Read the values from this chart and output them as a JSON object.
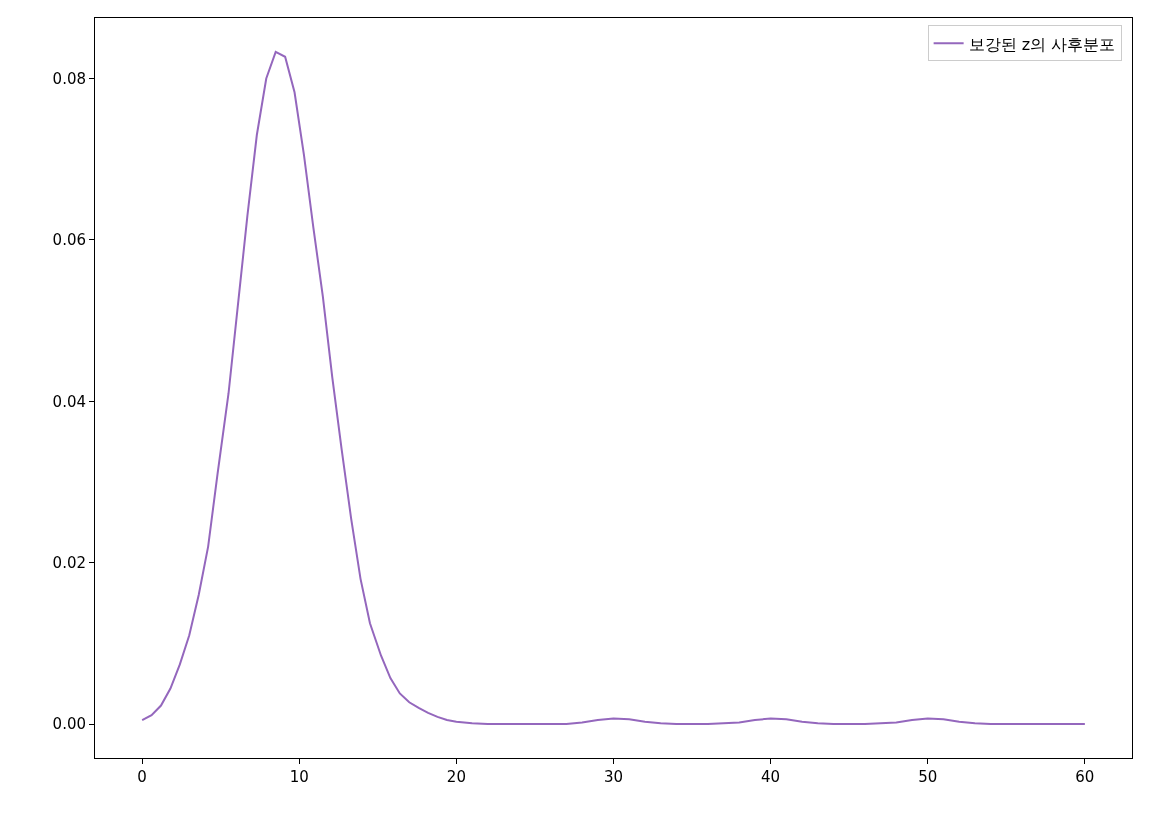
{
  "chart_data": {
    "type": "line",
    "x": [
      0,
      0.6,
      1.2,
      1.8,
      2.4,
      3.0,
      3.6,
      4.2,
      4.8,
      5.5,
      6.1,
      6.7,
      7.3,
      7.9,
      8.5,
      9.1,
      9.7,
      10.3,
      10.9,
      11.5,
      12.1,
      12.7,
      13.3,
      13.9,
      14.5,
      15.2,
      15.8,
      16.4,
      17.0,
      17.6,
      18.2,
      18.8,
      19.4,
      20,
      21,
      22,
      24,
      26,
      27,
      28,
      29,
      30,
      31,
      32,
      33,
      34,
      36,
      37,
      38,
      39,
      40,
      41,
      42,
      43,
      44,
      46,
      47,
      48,
      49,
      50,
      51,
      52,
      53,
      54,
      56,
      58,
      60
    ],
    "series": [
      {
        "name": "보강된 z의 사후분포",
        "color": "#9467bd",
        "values": [
          0.0005,
          0.0011,
          0.0023,
          0.0044,
          0.0074,
          0.011,
          0.016,
          0.022,
          0.031,
          0.041,
          0.052,
          0.063,
          0.073,
          0.08,
          0.0833,
          0.0827,
          0.0783,
          0.0705,
          0.0615,
          0.053,
          0.043,
          0.034,
          0.0255,
          0.018,
          0.0125,
          0.0085,
          0.0057,
          0.0038,
          0.0027,
          0.002,
          0.0014,
          0.0009,
          0.0005,
          0.0003,
          0.0001,
          0,
          0,
          0,
          0,
          0.0002,
          0.0005,
          0.0007,
          0.0006,
          0.0003,
          0.0001,
          0,
          0,
          0.0001,
          0.0002,
          0.0005,
          0.0007,
          0.0006,
          0.0003,
          0.0001,
          0,
          0,
          0.0001,
          0.0002,
          0.0005,
          0.0007,
          0.0006,
          0.0003,
          0.0001,
          0,
          0,
          0,
          0
        ]
      }
    ],
    "xlim": [
      -3,
      63
    ],
    "xticks": [
      0,
      10,
      20,
      30,
      40,
      50,
      60
    ],
    "ylim": [
      -0.0042,
      0.0875
    ],
    "yticks": [
      {
        "value": 0,
        "label": "0.00"
      },
      {
        "value": 0.02,
        "label": "0.02"
      },
      {
        "value": 0.04,
        "label": "0.04"
      },
      {
        "value": 0.06,
        "label": "0.06"
      },
      {
        "value": 0.08,
        "label": "0.08"
      }
    ],
    "legend": "top right",
    "marker": "none",
    "line_style": "solid"
  }
}
